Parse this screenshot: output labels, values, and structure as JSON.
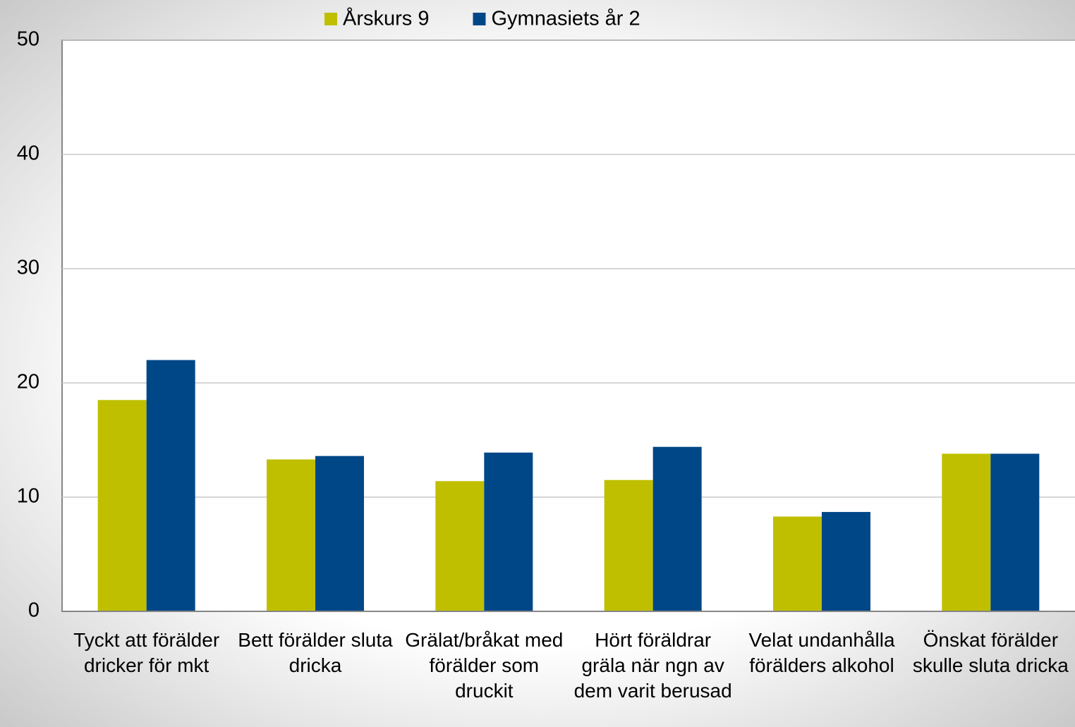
{
  "chart_data": {
    "type": "bar",
    "categories": [
      "Tyckt att förälder dricker för mkt",
      "Bett förälder sluta dricka",
      "Grälat/bråkat med förälder som druckit",
      "Hört föräldrar gräla när ngn av dem varit berusad",
      "Velat undanhålla förälders alkohol",
      "Önskat förälder skulle sluta dricka"
    ],
    "series": [
      {
        "name": "Årskurs 9",
        "color": "#bfbf00",
        "values": [
          18.5,
          13.3,
          11.4,
          11.5,
          8.3,
          13.8
        ]
      },
      {
        "name": "Gymnasiets år 2",
        "color": "#004787",
        "values": [
          22.0,
          13.6,
          13.9,
          14.4,
          8.7,
          13.8
        ]
      }
    ],
    "ylim": [
      0,
      50
    ],
    "yticks": [
      0,
      10,
      20,
      30,
      40,
      50
    ],
    "grid": true,
    "legend": "top"
  }
}
